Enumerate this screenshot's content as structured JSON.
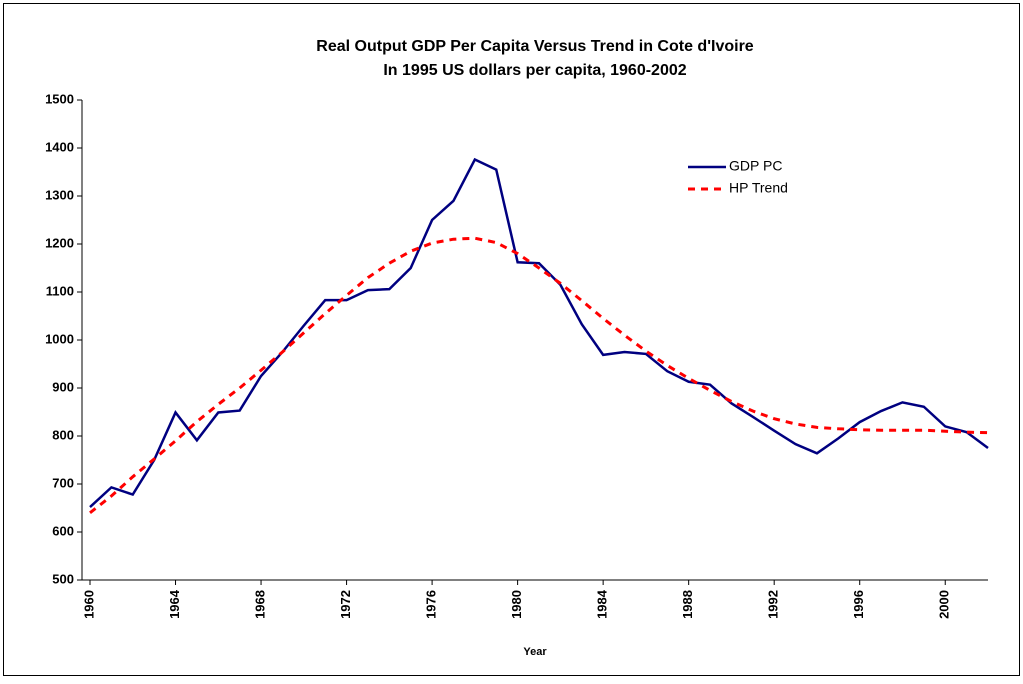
{
  "chart_data": {
    "type": "line",
    "title": "Real Output GDP Per Capita Versus Trend in Cote d'Ivoire",
    "subtitle": "In 1995 US dollars per capita, 1960-2002",
    "x_label": "Year",
    "x": [
      1960,
      1961,
      1962,
      1963,
      1964,
      1965,
      1966,
      1967,
      1968,
      1969,
      1970,
      1971,
      1972,
      1973,
      1974,
      1975,
      1976,
      1977,
      1978,
      1979,
      1980,
      1981,
      1982,
      1983,
      1984,
      1985,
      1986,
      1987,
      1988,
      1989,
      1990,
      1991,
      1992,
      1993,
      1994,
      1995,
      1996,
      1997,
      1998,
      1999,
      2000,
      2001,
      2002
    ],
    "series": [
      {
        "name": "GDP PC",
        "color": "#000080",
        "dash": "solid",
        "values": [
          652,
          693,
          678,
          750,
          849,
          791,
          849,
          853,
          925,
          975,
          1030,
          1083,
          1083,
          1104,
          1106,
          1150,
          1250,
          1290,
          1376,
          1355,
          1162,
          1160,
          1115,
          1033,
          969,
          975,
          971,
          935,
          913,
          907,
          868,
          840,
          811,
          783,
          764,
          795,
          829,
          852,
          870,
          861,
          820,
          808,
          775
        ]
      },
      {
        "name": "HP Trend",
        "color": "#ff0000",
        "dash": "dashed",
        "values": [
          640,
          675,
          715,
          752,
          790,
          830,
          866,
          900,
          937,
          975,
          1015,
          1055,
          1093,
          1130,
          1160,
          1185,
          1202,
          1210,
          1212,
          1203,
          1180,
          1150,
          1118,
          1082,
          1045,
          1010,
          977,
          947,
          920,
          895,
          872,
          852,
          836,
          825,
          818,
          815,
          813,
          812,
          812,
          812,
          810,
          808,
          807
        ]
      }
    ],
    "xlim": [
      1960,
      2002
    ],
    "xticks": [
      1960,
      1964,
      1968,
      1972,
      1976,
      1980,
      1984,
      1988,
      1992,
      1996,
      2000
    ],
    "ylim": [
      500,
      1500
    ],
    "yticks": [
      500,
      600,
      700,
      800,
      900,
      1000,
      1100,
      1200,
      1300,
      1400,
      1500
    ],
    "grid": false
  }
}
